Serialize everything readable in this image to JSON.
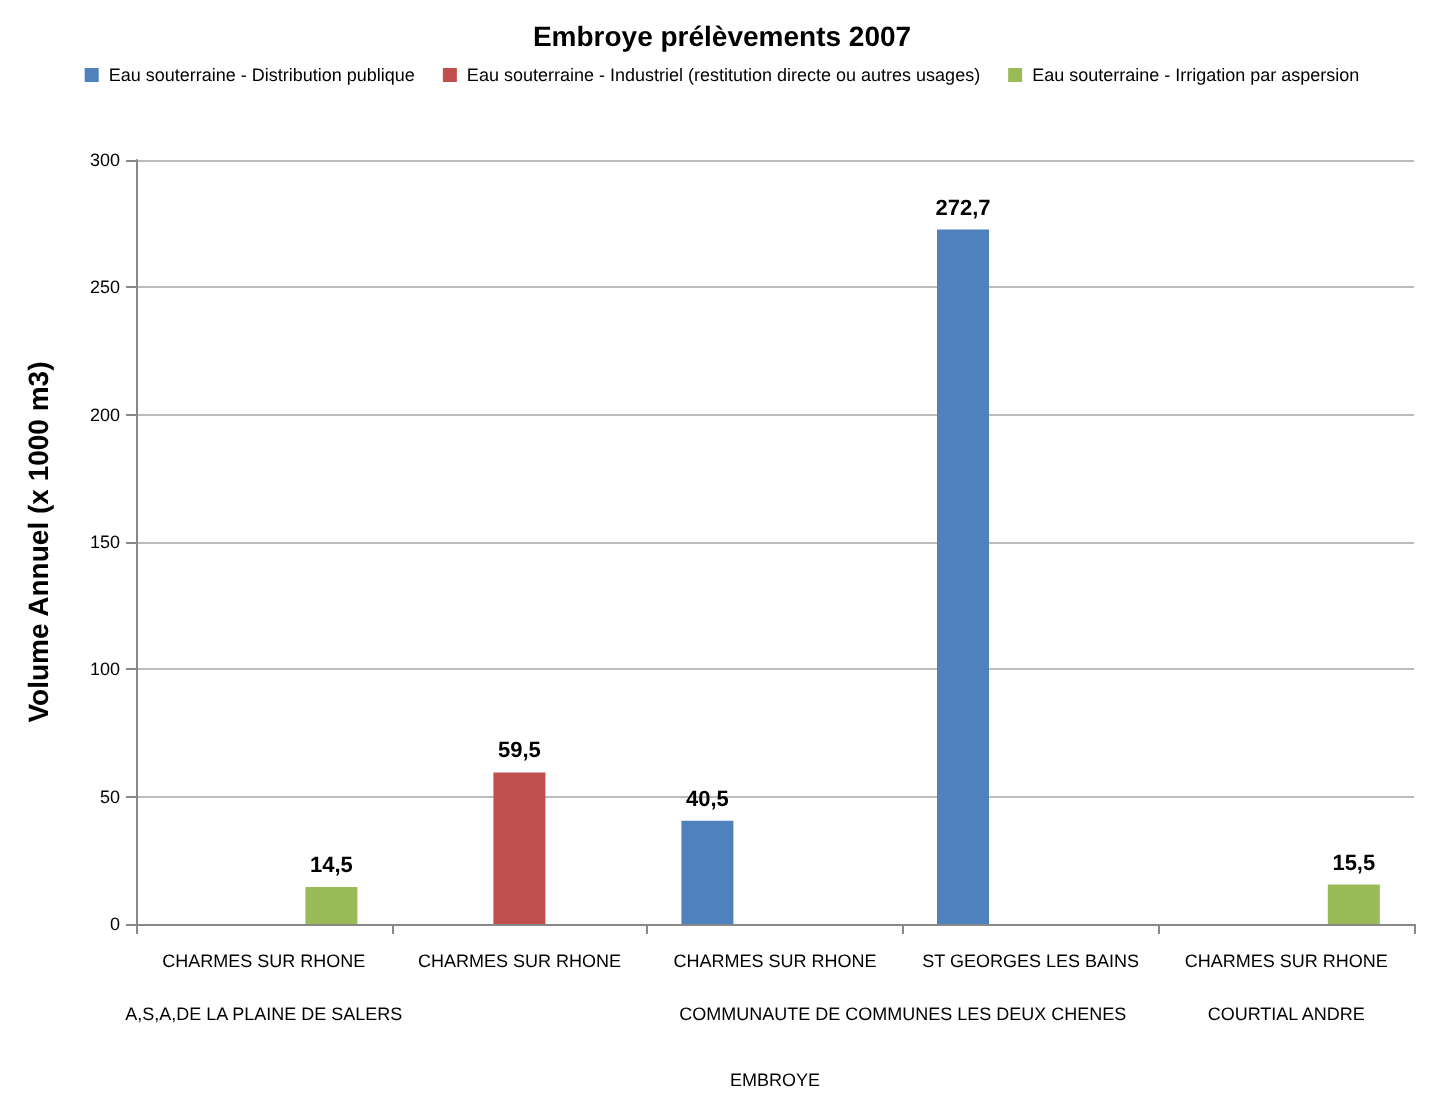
{
  "chart_data": {
    "type": "bar",
    "title": "Embroye prélèvements 2007",
    "ylabel": "Volume Annuel (x 1000 m3)",
    "categories": [
      "CHARMES SUR RHONE",
      "CHARMES SUR RHONE",
      "CHARMES SUR RHONE",
      "ST GEORGES LES BAINS",
      "CHARMES SUR RHONE"
    ],
    "series": [
      {
        "name": "Eau souterraine - Distribution publique",
        "color": "#4f81bd",
        "values": [
          null,
          null,
          40.5,
          272.7,
          null
        ],
        "value_labels": [
          null,
          null,
          "40,5",
          "272,7",
          null
        ]
      },
      {
        "name": "Eau souterraine - Industriel (restitution directe ou autres usages)",
        "color": "#c0504d",
        "values": [
          null,
          59.5,
          null,
          null,
          null
        ],
        "value_labels": [
          null,
          "59,5",
          null,
          null,
          null
        ]
      },
      {
        "name": "Eau souterraine - Irrigation par aspersion",
        "color": "#9bbb59",
        "values": [
          14.5,
          null,
          null,
          null,
          15.5
        ],
        "value_labels": [
          "14,5",
          null,
          null,
          null,
          "15,5"
        ]
      }
    ],
    "annotations": [
      "A,S,A,DE LA PLAINE DE SALERS",
      "COMMUNAUTE DE COMMUNES LES DEUX CHENES",
      "COURTIAL ANDRE",
      "EMBROYE"
    ],
    "ylim": [
      0,
      300
    ],
    "yticks": [
      0,
      50,
      100,
      150,
      200,
      250,
      300
    ],
    "grid": "y",
    "legend": "top"
  }
}
